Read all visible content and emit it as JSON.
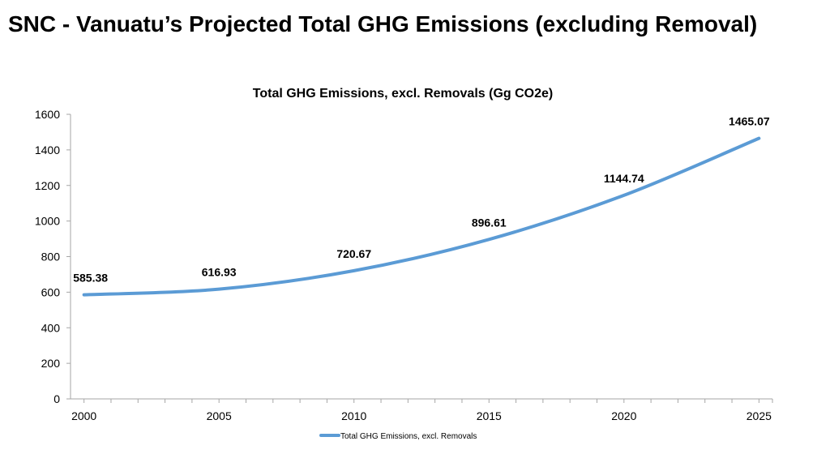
{
  "page": {
    "title": "SNC - Vanuatu’s Projected Total GHG Emissions (excluding Removal)"
  },
  "chart_data": {
    "type": "line",
    "title": "Total GHG Emissions, excl. Removals (Gg CO2e)",
    "xlabel": "",
    "ylabel": "",
    "x": [
      2000,
      2005,
      2010,
      2015,
      2020,
      2025
    ],
    "series": [
      {
        "name": "Total GHG Emissions, excl. Removals",
        "values": [
          585.38,
          616.93,
          720.67,
          896.61,
          1144.74,
          1465.07
        ],
        "labels": [
          "585.38",
          "616.93",
          "720.67",
          "896.61",
          "1144.74",
          "1465.07"
        ],
        "color": "#5B9BD5"
      }
    ],
    "xlim": [
      1999.5,
      2025.5
    ],
    "ylim": [
      0,
      1600
    ],
    "yticks": [
      0,
      200,
      400,
      600,
      800,
      1000,
      1200,
      1400,
      1600
    ],
    "xticks": [
      2000,
      2005,
      2010,
      2015,
      2020,
      2025
    ],
    "grid": false,
    "legend": "bottom",
    "curve": "smooth"
  }
}
